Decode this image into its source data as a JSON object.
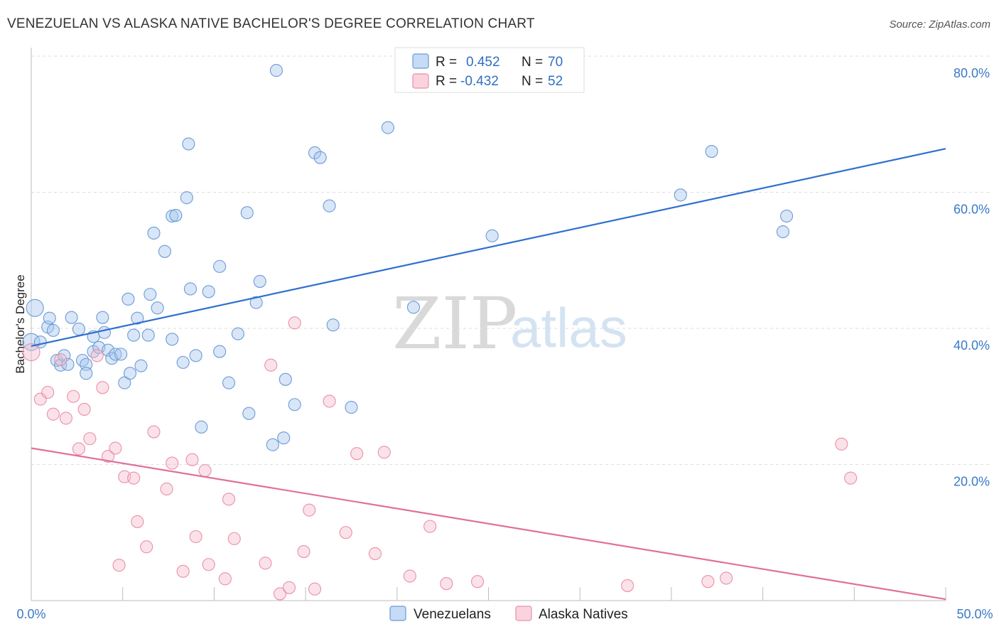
{
  "chart_data": {
    "type": "scatter",
    "title": "VENEZUELAN VS ALASKA NATIVE BACHELOR'S DEGREE CORRELATION CHART",
    "source": "Source: ZipAtlas.com",
    "ylabel": "Bachelor's Degree",
    "xlim": [
      0,
      50
    ],
    "ylim": [
      0,
      80
    ],
    "x_tick_labels": [
      "0.0%",
      "50.0%"
    ],
    "y_ticks": [
      20,
      40,
      60,
      80
    ],
    "y_tick_labels": [
      "20.0%",
      "40.0%",
      "60.0%",
      "80.0%"
    ],
    "watermark": {
      "zip": "ZIP",
      "atlas": "atlas"
    },
    "stats": [
      {
        "r_label": "R =",
        "r_value": "0.452",
        "n_label": "N =",
        "n_value": "70"
      },
      {
        "r_label": "R =",
        "r_value": "-0.432",
        "n_label": "N =",
        "n_value": "52"
      }
    ],
    "series": [
      {
        "name": "Venezuelans",
        "color": "#a8c8ee",
        "stroke": "#6b9bd6",
        "line_color": "#2f6fd0",
        "trend": [
          [
            0,
            37.4
          ],
          [
            50,
            66.4
          ]
        ],
        "points": [
          [
            0.0,
            38.0
          ],
          [
            0.2,
            43.0
          ],
          [
            0.5,
            38.0
          ],
          [
            0.9,
            40.2
          ],
          [
            1.0,
            41.5
          ],
          [
            1.2,
            39.7
          ],
          [
            1.4,
            35.3
          ],
          [
            1.6,
            34.6
          ],
          [
            1.8,
            36.0
          ],
          [
            2.0,
            34.7
          ],
          [
            2.2,
            41.6
          ],
          [
            2.6,
            39.9
          ],
          [
            2.8,
            35.3
          ],
          [
            3.0,
            34.7
          ],
          [
            3.0,
            33.4
          ],
          [
            3.4,
            36.6
          ],
          [
            3.4,
            38.8
          ],
          [
            3.7,
            37.2
          ],
          [
            3.9,
            41.6
          ],
          [
            4.0,
            39.4
          ],
          [
            4.2,
            36.8
          ],
          [
            4.4,
            35.6
          ],
          [
            4.6,
            36.2
          ],
          [
            4.9,
            36.2
          ],
          [
            5.1,
            32.0
          ],
          [
            5.3,
            44.3
          ],
          [
            5.4,
            33.4
          ],
          [
            5.6,
            39.0
          ],
          [
            5.8,
            41.5
          ],
          [
            6.0,
            34.5
          ],
          [
            6.4,
            39.0
          ],
          [
            6.5,
            45.0
          ],
          [
            6.7,
            54.0
          ],
          [
            6.9,
            43.0
          ],
          [
            7.3,
            51.3
          ],
          [
            7.7,
            38.4
          ],
          [
            7.7,
            56.5
          ],
          [
            7.9,
            56.6
          ],
          [
            8.3,
            35.0
          ],
          [
            8.5,
            59.2
          ],
          [
            8.6,
            67.1
          ],
          [
            8.7,
            45.8
          ],
          [
            9.0,
            36.0
          ],
          [
            9.3,
            25.5
          ],
          [
            9.7,
            45.4
          ],
          [
            10.3,
            49.1
          ],
          [
            10.3,
            36.6
          ],
          [
            10.8,
            32.0
          ],
          [
            11.3,
            39.2
          ],
          [
            11.8,
            57.0
          ],
          [
            11.9,
            27.5
          ],
          [
            12.3,
            43.8
          ],
          [
            12.5,
            46.9
          ],
          [
            13.2,
            22.9
          ],
          [
            13.4,
            77.9
          ],
          [
            13.8,
            23.9
          ],
          [
            13.9,
            32.5
          ],
          [
            14.4,
            28.8
          ],
          [
            15.5,
            65.8
          ],
          [
            15.8,
            65.1
          ],
          [
            16.3,
            58.0
          ],
          [
            16.5,
            40.5
          ],
          [
            17.5,
            28.4
          ],
          [
            19.5,
            69.5
          ],
          [
            20.9,
            43.1
          ],
          [
            25.2,
            53.6
          ],
          [
            35.5,
            59.6
          ],
          [
            37.2,
            66.0
          ],
          [
            41.1,
            54.2
          ],
          [
            41.3,
            56.5
          ]
        ]
      },
      {
        "name": "Alaska Natives",
        "color": "#f7bfcf",
        "stroke": "#e890aa",
        "line_color": "#e0709a",
        "trend": [
          [
            0,
            22.4
          ],
          [
            50,
            0.2
          ]
        ],
        "points": [
          [
            0.0,
            36.5
          ],
          [
            0.5,
            29.6
          ],
          [
            0.9,
            30.6
          ],
          [
            1.2,
            27.4
          ],
          [
            1.6,
            35.4
          ],
          [
            1.9,
            26.8
          ],
          [
            2.3,
            30.0
          ],
          [
            2.6,
            22.3
          ],
          [
            2.9,
            28.1
          ],
          [
            3.2,
            23.8
          ],
          [
            3.6,
            36.0
          ],
          [
            3.9,
            31.3
          ],
          [
            4.2,
            21.2
          ],
          [
            4.6,
            22.4
          ],
          [
            4.8,
            5.2
          ],
          [
            5.1,
            18.2
          ],
          [
            5.6,
            18.0
          ],
          [
            5.8,
            11.6
          ],
          [
            6.3,
            7.9
          ],
          [
            6.7,
            24.8
          ],
          [
            7.4,
            16.4
          ],
          [
            7.7,
            20.2
          ],
          [
            8.3,
            4.3
          ],
          [
            8.8,
            20.7
          ],
          [
            9.0,
            9.4
          ],
          [
            9.5,
            19.1
          ],
          [
            9.7,
            5.3
          ],
          [
            10.6,
            3.2
          ],
          [
            10.8,
            14.9
          ],
          [
            11.1,
            9.1
          ],
          [
            12.8,
            5.5
          ],
          [
            13.1,
            34.6
          ],
          [
            13.6,
            1.0
          ],
          [
            14.1,
            1.9
          ],
          [
            14.4,
            40.8
          ],
          [
            14.9,
            7.2
          ],
          [
            15.2,
            13.3
          ],
          [
            15.5,
            1.7
          ],
          [
            16.3,
            29.3
          ],
          [
            17.2,
            10.0
          ],
          [
            17.8,
            21.6
          ],
          [
            18.8,
            6.9
          ],
          [
            19.3,
            21.8
          ],
          [
            20.7,
            3.6
          ],
          [
            21.8,
            10.9
          ],
          [
            22.7,
            2.5
          ],
          [
            24.4,
            2.8
          ],
          [
            32.6,
            2.2
          ],
          [
            37.0,
            2.8
          ],
          [
            38.0,
            3.3
          ],
          [
            44.3,
            23.0
          ],
          [
            44.8,
            18.0
          ]
        ]
      }
    ]
  }
}
